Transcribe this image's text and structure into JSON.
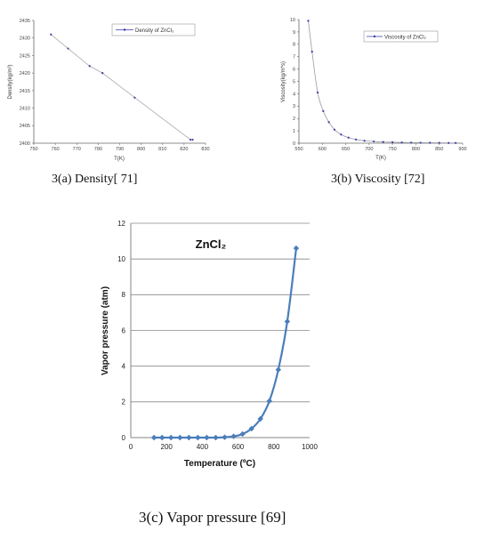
{
  "captions": {
    "a": "3(a) Density[ 71]",
    "b": "3(b) Viscosity [72]",
    "c": "3(c) Vapor pressure [69]"
  },
  "chart_data": [
    {
      "id": "density",
      "type": "line",
      "title": "",
      "xlabel": "T(K)",
      "ylabel": "Density(kg/m³)",
      "xlim": [
        750,
        830
      ],
      "ylim": [
        2400,
        2435
      ],
      "xticks": [
        750,
        760,
        770,
        780,
        790,
        800,
        810,
        820,
        830
      ],
      "yticks": [
        2400,
        2405,
        2410,
        2415,
        2420,
        2425,
        2430,
        2435
      ],
      "grid": false,
      "legend_position": "top-right",
      "color": "#3a3aa8",
      "series": [
        {
          "name": "Density of ZnCl₂",
          "x": [
            758,
            766,
            776,
            782,
            797,
            823,
            824
          ],
          "y": [
            2431,
            2427,
            2422,
            2420,
            2413,
            2401,
            2401
          ]
        }
      ]
    },
    {
      "id": "viscosity",
      "type": "line",
      "title": "",
      "xlabel": "T(K)",
      "ylabel": "Viscosity(kg/m*s)",
      "xlim": [
        550,
        900
      ],
      "ylim": [
        0,
        10
      ],
      "xticks": [
        550,
        600,
        650,
        700,
        750,
        800,
        850,
        900
      ],
      "yticks": [
        0,
        1,
        2,
        3,
        4,
        5,
        6,
        7,
        8,
        9,
        10
      ],
      "grid": false,
      "legend_position": "top-right",
      "color": "#3a3aa8",
      "series": [
        {
          "name": "Viscosity of ZnCl₂",
          "x": [
            570,
            578,
            590,
            602,
            614,
            626,
            640,
            656,
            672,
            690,
            710,
            730,
            750,
            770,
            790,
            810,
            830,
            850,
            870,
            885
          ],
          "y": [
            9.9,
            7.4,
            4.1,
            2.6,
            1.7,
            1.1,
            0.7,
            0.45,
            0.3,
            0.2,
            0.14,
            0.1,
            0.08,
            0.06,
            0.05,
            0.04,
            0.035,
            0.03,
            0.02,
            0.02
          ]
        }
      ]
    },
    {
      "id": "vapor",
      "type": "line",
      "title": "",
      "annotation": "ZnCl₂",
      "xlabel": "Temperature (ºC)",
      "ylabel": "Vapor pressure  (atm)",
      "xlim": [
        0,
        1000
      ],
      "ylim": [
        0,
        12
      ],
      "xticks": [
        0,
        200,
        400,
        600,
        800,
        1000
      ],
      "yticks": [
        0,
        2,
        4,
        6,
        8,
        10,
        12
      ],
      "grid": true,
      "color": "#4a7ebb",
      "series": [
        {
          "name": "",
          "x": [
            130,
            175,
            225,
            275,
            325,
            375,
            425,
            475,
            525,
            575,
            625,
            675,
            725,
            775,
            825,
            875,
            925
          ],
          "y": [
            0,
            0,
            0,
            0,
            0,
            0,
            0,
            0,
            0.02,
            0.07,
            0.2,
            0.5,
            1.05,
            2.05,
            3.8,
            6.5,
            10.6
          ]
        }
      ]
    }
  ]
}
